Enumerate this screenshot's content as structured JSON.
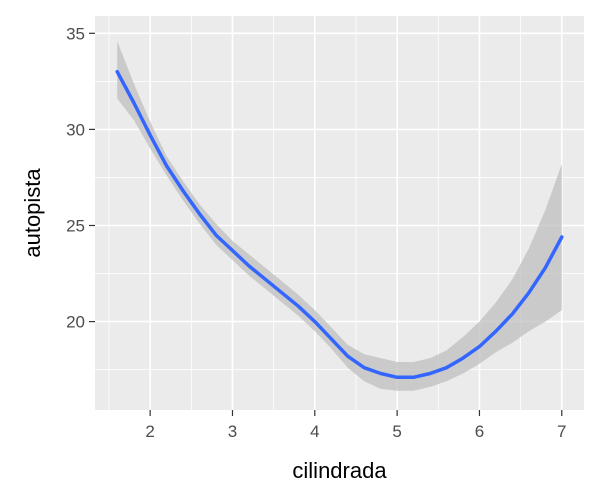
{
  "chart_data": {
    "type": "line",
    "title": "",
    "xlabel": "cilindrada",
    "ylabel": "autopista",
    "xlim": [
      1.33,
      7.27
    ],
    "ylim": [
      15.4,
      35.9
    ],
    "x_ticks": [
      2,
      3,
      4,
      5,
      6,
      7
    ],
    "y_ticks": [
      20,
      25,
      30,
      35
    ],
    "grid": true,
    "legend": "none",
    "series": [
      {
        "type": "smooth-line",
        "color": "#3366FF",
        "x": [
          1.6,
          1.8,
          2.0,
          2.2,
          2.4,
          2.6,
          2.8,
          3.0,
          3.2,
          3.4,
          3.6,
          3.8,
          4.0,
          4.2,
          4.4,
          4.6,
          4.8,
          5.0,
          5.2,
          5.4,
          5.6,
          5.8,
          6.0,
          6.2,
          6.4,
          6.6,
          6.8,
          7.0
        ],
        "y": [
          33.0,
          31.4,
          29.7,
          28.1,
          26.8,
          25.6,
          24.5,
          23.7,
          22.9,
          22.2,
          21.5,
          20.8,
          20.0,
          19.1,
          18.2,
          17.6,
          17.3,
          17.1,
          17.1,
          17.3,
          17.6,
          18.1,
          18.7,
          19.5,
          20.4,
          21.5,
          22.8,
          24.4
        ]
      }
    ],
    "confidence_band": {
      "color": "#bfbfbf",
      "x": [
        1.6,
        1.8,
        2.0,
        2.2,
        2.4,
        2.6,
        2.8,
        3.0,
        3.2,
        3.4,
        3.6,
        3.8,
        4.0,
        4.2,
        4.4,
        4.6,
        4.8,
        5.0,
        5.2,
        5.4,
        5.6,
        5.8,
        6.0,
        6.2,
        6.4,
        6.6,
        6.8,
        7.0
      ],
      "lower": [
        31.6,
        30.5,
        29.0,
        27.6,
        26.3,
        25.1,
        24.0,
        23.2,
        22.4,
        21.7,
        21.0,
        20.3,
        19.5,
        18.6,
        17.6,
        16.9,
        16.5,
        16.4,
        16.4,
        16.6,
        16.9,
        17.3,
        17.8,
        18.4,
        18.9,
        19.5,
        20.0,
        20.6
      ],
      "upper": [
        34.6,
        32.4,
        30.4,
        28.6,
        27.3,
        26.1,
        25.1,
        24.2,
        23.5,
        22.8,
        22.1,
        21.4,
        20.6,
        19.7,
        18.8,
        18.3,
        18.1,
        17.9,
        17.9,
        18.1,
        18.5,
        19.2,
        20.0,
        21.0,
        22.2,
        23.8,
        25.8,
        28.2
      ]
    },
    "colors": {
      "panel": "#EBEBEB",
      "grid_major": "#FFFFFF",
      "line": "#3366FF",
      "band": "#BFBFBF",
      "tick_text": "#4D4D4D",
      "tick_mark": "#333333"
    }
  }
}
